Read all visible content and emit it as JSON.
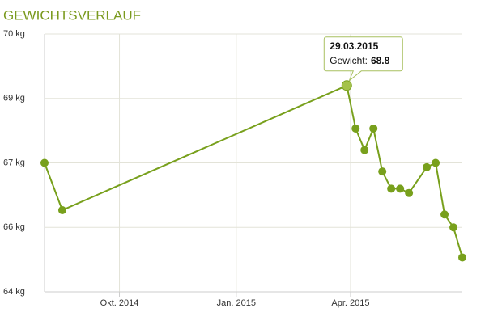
{
  "chart_data": {
    "type": "line",
    "title": "GEWICHTSVERLAUF",
    "x": [
      "2014-08-03",
      "2014-08-17",
      "2015-03-29",
      "2015-04-05",
      "2015-04-12",
      "2015-04-19",
      "2015-04-26",
      "2015-05-03",
      "2015-05-10",
      "2015-05-17",
      "2015-05-31",
      "2015-06-07",
      "2015-06-14",
      "2015-06-21",
      "2015-06-28"
    ],
    "series": [
      {
        "name": "Gewicht",
        "color": "#78a01c",
        "values": [
          67.0,
          65.9,
          68.8,
          67.8,
          67.3,
          67.8,
          66.8,
          66.4,
          66.4,
          66.3,
          66.9,
          67.0,
          65.8,
          65.5,
          64.8
        ]
      }
    ],
    "xlim": [
      "2014-08-03",
      "2015-06-28"
    ],
    "xticks": [
      {
        "value": "2014-10-01",
        "label": "Okt. 2014"
      },
      {
        "value": "2015-01-01",
        "label": "Jan. 2015"
      },
      {
        "value": "2015-04-01",
        "label": "Apr. 2015"
      }
    ],
    "ylim": [
      64,
      70
    ],
    "yticks": [
      {
        "value": 64,
        "label": "64 kg"
      },
      {
        "value": 65.5,
        "label": "66 kg"
      },
      {
        "value": 67,
        "label": "67 kg"
      },
      {
        "value": 68.5,
        "label": "69 kg"
      },
      {
        "value": 70,
        "label": "70 kg"
      }
    ],
    "grid": true,
    "tooltip": {
      "index": 2,
      "date": "29.03.2015",
      "label": "Gewicht:"
    }
  }
}
